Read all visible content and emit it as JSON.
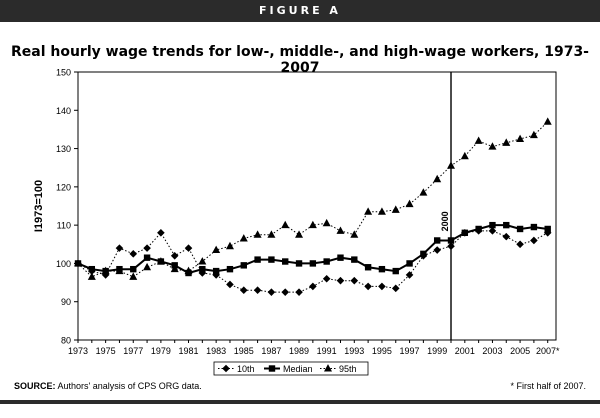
{
  "header": {
    "figure_label": "FIGURE A"
  },
  "chart_data": {
    "type": "line",
    "title": "Real hourly wage trends for low-, middle-, and high-wage workers, 1973-2007",
    "ylabel": "I1973=100",
    "xlabel": "",
    "ylim": [
      80,
      150
    ],
    "yticks": [
      80,
      90,
      100,
      110,
      120,
      130,
      140,
      150
    ],
    "xlim": [
      1973,
      2007
    ],
    "xtick_labels": [
      "1973",
      "1975",
      "1977",
      "1979",
      "1981",
      "1983",
      "1985",
      "1987",
      "1989",
      "1991",
      "1993",
      "1995",
      "1997",
      "1999",
      "2001",
      "2003",
      "2005",
      "2007*"
    ],
    "x": [
      1973,
      1974,
      1975,
      1976,
      1977,
      1978,
      1979,
      1980,
      1981,
      1982,
      1983,
      1984,
      1985,
      1986,
      1987,
      1988,
      1989,
      1990,
      1991,
      1992,
      1993,
      1994,
      1995,
      1996,
      1997,
      1998,
      1999,
      2000,
      2001,
      2002,
      2003,
      2004,
      2005,
      2006,
      2007
    ],
    "series": [
      {
        "name": "10th",
        "marker": "diamond",
        "line": "dotted",
        "values": [
          100,
          98,
          97,
          104,
          102.5,
          104,
          108,
          102,
          104,
          97.5,
          97,
          94.5,
          93,
          93,
          92.5,
          92.5,
          92.5,
          94,
          96,
          95.5,
          95.5,
          94,
          94,
          93.5,
          97,
          102,
          103.5,
          104.5,
          108,
          108.5,
          108.5,
          107,
          105,
          106,
          108
        ]
      },
      {
        "name": "Median",
        "marker": "square",
        "line": "solid",
        "values": [
          100,
          98.5,
          98,
          98.5,
          98.5,
          101.5,
          100.5,
          99.5,
          97.5,
          98.5,
          98,
          98.5,
          99.5,
          101,
          101,
          100.5,
          100,
          100,
          100.5,
          101.5,
          101,
          99,
          98.5,
          98,
          100,
          102.5,
          106,
          106,
          108,
          109,
          110,
          110,
          109,
          109.5,
          109
        ]
      },
      {
        "name": "95th",
        "marker": "triangle",
        "line": "dotted",
        "values": [
          100,
          96.5,
          98,
          98,
          96.5,
          99,
          100.5,
          98.5,
          98,
          100.5,
          103.5,
          104.5,
          106.5,
          107.5,
          107.5,
          110,
          107.5,
          110,
          110.5,
          108.5,
          107.5,
          113.5,
          113.5,
          114,
          115.5,
          118.5,
          122,
          125.5,
          128,
          132,
          130.5,
          131.5,
          132.5,
          133.5,
          137
        ]
      }
    ],
    "annotation": {
      "x": 2000,
      "label": "2000"
    },
    "legend": {
      "placement": "bottom-center",
      "entries": [
        "10th",
        "Median",
        "95th"
      ]
    },
    "grid": false
  },
  "footer": {
    "source_label": "SOURCE:",
    "source_text": "Authors' analysis of CPS ORG data.",
    "footnote": "* First half of 2007."
  }
}
